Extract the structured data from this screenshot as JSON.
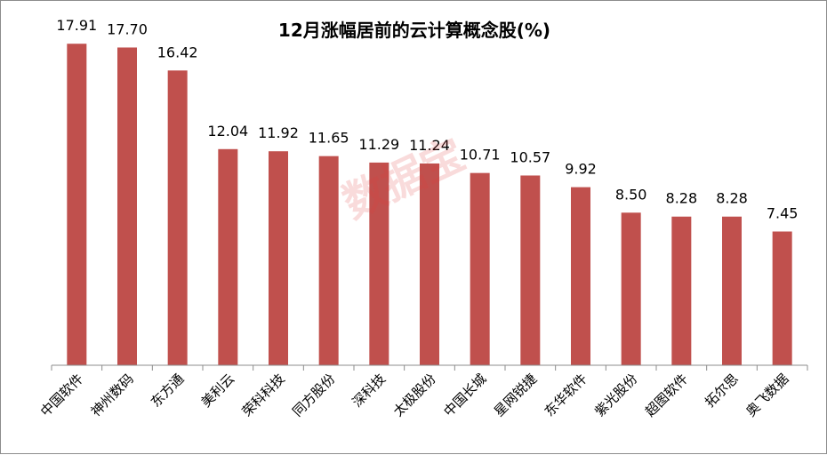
{
  "chart_data": {
    "type": "bar",
    "title": "12月涨幅居前的云计算概念股(%)",
    "categories": [
      "中国软件",
      "神州数码",
      "东方通",
      "美利云",
      "荣科科技",
      "同方股份",
      "深科技",
      "太极股份",
      "中国长城",
      "星网锐捷",
      "东华软件",
      "紫光股份",
      "超图软件",
      "拓尔思",
      "奥飞数据"
    ],
    "values": [
      17.91,
      17.7,
      16.42,
      12.04,
      11.92,
      11.65,
      11.29,
      11.24,
      10.71,
      10.57,
      9.92,
      8.5,
      8.28,
      8.28,
      7.45
    ],
    "value_labels": [
      "17.91",
      "17.70",
      "16.42",
      "12.04",
      "11.92",
      "11.65",
      "11.29",
      "11.24",
      "10.71",
      "10.57",
      "9.92",
      "8.50",
      "8.28",
      "8.28",
      "7.45"
    ],
    "ylim": [
      0,
      20
    ],
    "grid": false,
    "legend": "none",
    "bar_color": "#c0504d"
  },
  "watermark": "数据宝"
}
